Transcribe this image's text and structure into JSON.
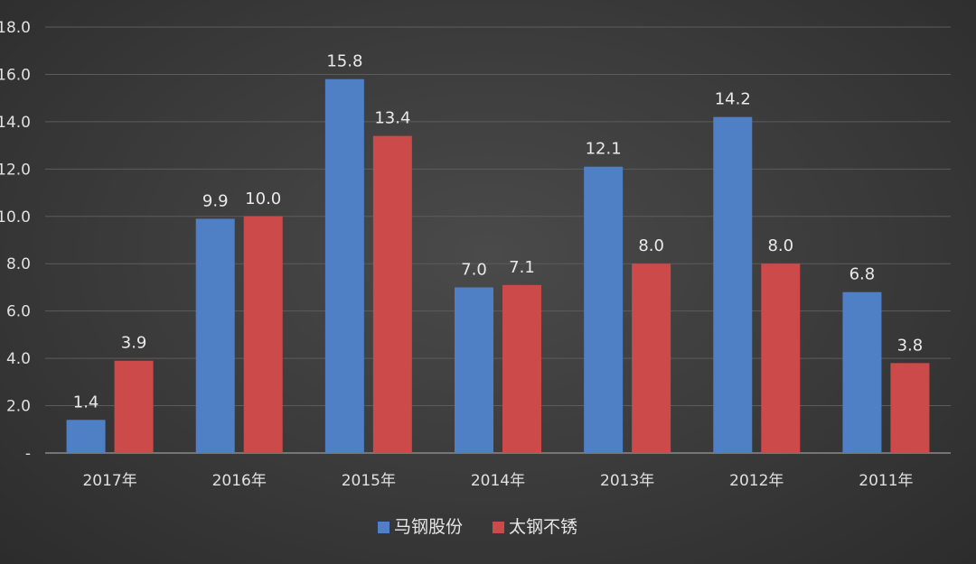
{
  "chart_data": {
    "type": "bar",
    "categories": [
      "2017年",
      "2016年",
      "2015年",
      "2014年",
      "2013年",
      "2012年",
      "2011年"
    ],
    "series": [
      {
        "name": "马钢股份",
        "color": "#4f7fc4",
        "values": [
          1.4,
          9.9,
          15.8,
          7.0,
          12.1,
          14.2,
          6.8
        ],
        "labels": [
          "1.4",
          "9.9",
          "15.8",
          "7.0",
          "12.1",
          "14.2",
          "6.8"
        ]
      },
      {
        "name": "太钢不锈",
        "color": "#cc4a4a",
        "values": [
          3.9,
          10.0,
          13.4,
          7.1,
          8.0,
          8.0,
          3.8
        ],
        "labels": [
          "3.9",
          "10.0",
          "13.4",
          "7.1",
          "8.0",
          "8.0",
          "3.8"
        ]
      }
    ],
    "y_ticks": [
      "-",
      "2.0",
      "4.0",
      "6.0",
      "8.0",
      "10.0",
      "12.0",
      "14.0",
      "16.0",
      "18.0"
    ],
    "ylim": [
      0,
      18
    ],
    "grid": true,
    "legend_position": "bottom-center",
    "title": "",
    "xlabel": "",
    "ylabel": ""
  }
}
